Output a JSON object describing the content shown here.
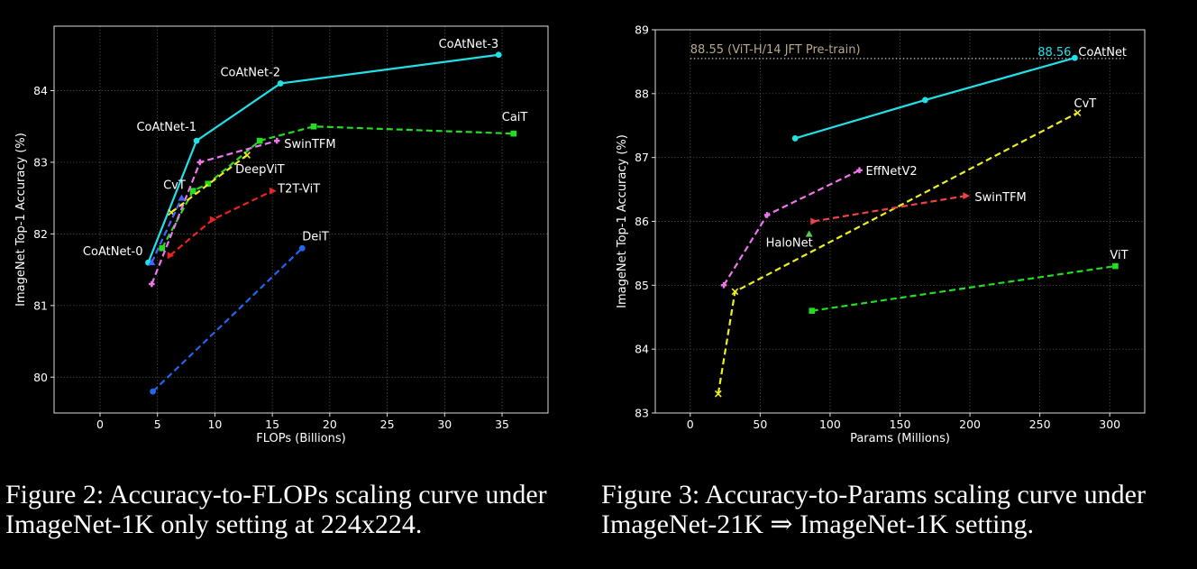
{
  "captions": {
    "fig2": "Figure 2: Accuracy-to-FLOPs scaling curve under ImageNet-1K only setting at 224x224.",
    "fig3": "Figure 3: Accuracy-to-Params scaling curve under ImageNet-21K ⇒ ImageNet-1K setting."
  },
  "chart_data": [
    {
      "type": "line",
      "xlabel": "FLOPs (Billions)",
      "ylabel": "ImageNet Top-1 Accuracy (%)",
      "xlim": [
        -4,
        39
      ],
      "ylim": [
        79.5,
        84.9
      ],
      "xticks": [
        0,
        5,
        10,
        15,
        20,
        25,
        30,
        35
      ],
      "yticks": [
        80,
        81,
        82,
        83,
        84
      ],
      "grid": true,
      "series": [
        {
          "name": "CoAtNet",
          "color": "#22e0e8",
          "marker": "circle",
          "dash": false,
          "x": [
            4.2,
            8.4,
            15.7,
            34.7
          ],
          "y": [
            81.6,
            83.3,
            84.1,
            84.5
          ],
          "point_labels": [
            "CoAtNet-0",
            "CoAtNet-1",
            "CoAtNet-2",
            "CoAtNet-3"
          ]
        },
        {
          "name": "CaiT",
          "color": "#22dd22",
          "marker": "square",
          "dash": true,
          "x": [
            5.4,
            8.1,
            9.4,
            13.9,
            18.6,
            36.0
          ],
          "y": [
            81.8,
            82.6,
            82.7,
            83.3,
            83.5,
            83.4
          ]
        },
        {
          "name": "SwinTFM",
          "color": "#ee77ee",
          "marker": "plus",
          "dash": true,
          "x": [
            4.5,
            8.7,
            15.4
          ],
          "y": [
            81.3,
            83.0,
            83.3
          ]
        },
        {
          "name": "DeepViT",
          "color": "#eeee22",
          "marker": "x",
          "dash": true,
          "x": [
            6.2,
            12.8
          ],
          "y": [
            82.3,
            83.1
          ]
        },
        {
          "name": "CvT",
          "color": "#4466ff",
          "marker": "tri",
          "dash": true,
          "x": [
            4.5,
            7.1
          ],
          "y": [
            81.6,
            82.5
          ]
        },
        {
          "name": "T2T-ViT",
          "color": "#ee2222",
          "marker": "tri_right",
          "dash": true,
          "x": [
            6.1,
            9.8,
            15.0
          ],
          "y": [
            81.7,
            82.2,
            82.6
          ]
        },
        {
          "name": "DeiT",
          "color": "#2266ee",
          "marker": "circle",
          "dash": true,
          "x": [
            4.6,
            17.6
          ],
          "y": [
            79.8,
            81.8
          ]
        }
      ],
      "annotations": [
        {
          "text": "CaiT",
          "x": 36.0,
          "y": 83.4
        },
        {
          "text": "SwinTFM",
          "x": 15.4,
          "y": 83.3
        },
        {
          "text": "DeepViT",
          "x": 12.8,
          "y": 83.1
        },
        {
          "text": "CvT",
          "x": 7.1,
          "y": 82.5
        },
        {
          "text": "T2T-ViT",
          "x": 15.0,
          "y": 82.6
        },
        {
          "text": "DeiT",
          "x": 17.6,
          "y": 81.8
        }
      ]
    },
    {
      "type": "line",
      "xlabel": "Params (Millions)",
      "ylabel": "ImageNet Top-1 Accuracy (%)",
      "xlim": [
        -25,
        325
      ],
      "ylim": [
        83,
        89
      ],
      "xticks": [
        0,
        50,
        100,
        150,
        200,
        250,
        300
      ],
      "yticks": [
        83,
        84,
        85,
        86,
        87,
        88,
        89
      ],
      "grid": true,
      "reference_line": {
        "y": 88.55,
        "text": "88.55 (ViT-H/14 JFT Pre-train)",
        "color": "#b9a98a"
      },
      "highlight": {
        "text": "88.56",
        "color": "#22e0e8"
      },
      "series": [
        {
          "name": "CoAtNet",
          "color": "#22e0e8",
          "marker": "circle",
          "dash": false,
          "x": [
            75,
            168,
            275
          ],
          "y": [
            87.3,
            87.9,
            88.56
          ]
        },
        {
          "name": "CvT",
          "color": "#eeee22",
          "marker": "x",
          "dash": true,
          "x": [
            20,
            32,
            277
          ],
          "y": [
            83.3,
            84.9,
            87.7
          ]
        },
        {
          "name": "EffNetV2",
          "color": "#ee77ee",
          "marker": "plus",
          "dash": true,
          "x": [
            24,
            55,
            121
          ],
          "y": [
            85.0,
            86.1,
            86.8
          ]
        },
        {
          "name": "SwinTFM",
          "color": "#ee4444",
          "marker": "tri_right",
          "dash": true,
          "x": [
            88,
            197
          ],
          "y": [
            86.0,
            86.4
          ]
        },
        {
          "name": "HaloNet",
          "color": "#55cc55",
          "marker": "tri",
          "dash": false,
          "x": [
            85
          ],
          "y": [
            85.8
          ]
        },
        {
          "name": "ViT",
          "color": "#22dd22",
          "marker": "square",
          "dash": true,
          "x": [
            87,
            304
          ],
          "y": [
            84.6,
            85.3
          ]
        }
      ],
      "annotations": [
        {
          "text": "CoAtNet",
          "x": 275,
          "y": 88.56
        },
        {
          "text": "CvT",
          "x": 277,
          "y": 87.7
        },
        {
          "text": "EffNetV2",
          "x": 121,
          "y": 86.8
        },
        {
          "text": "SwinTFM",
          "x": 197,
          "y": 86.4
        },
        {
          "text": "HaloNet",
          "x": 85,
          "y": 85.8
        },
        {
          "text": "ViT",
          "x": 304,
          "y": 85.3
        }
      ]
    }
  ]
}
